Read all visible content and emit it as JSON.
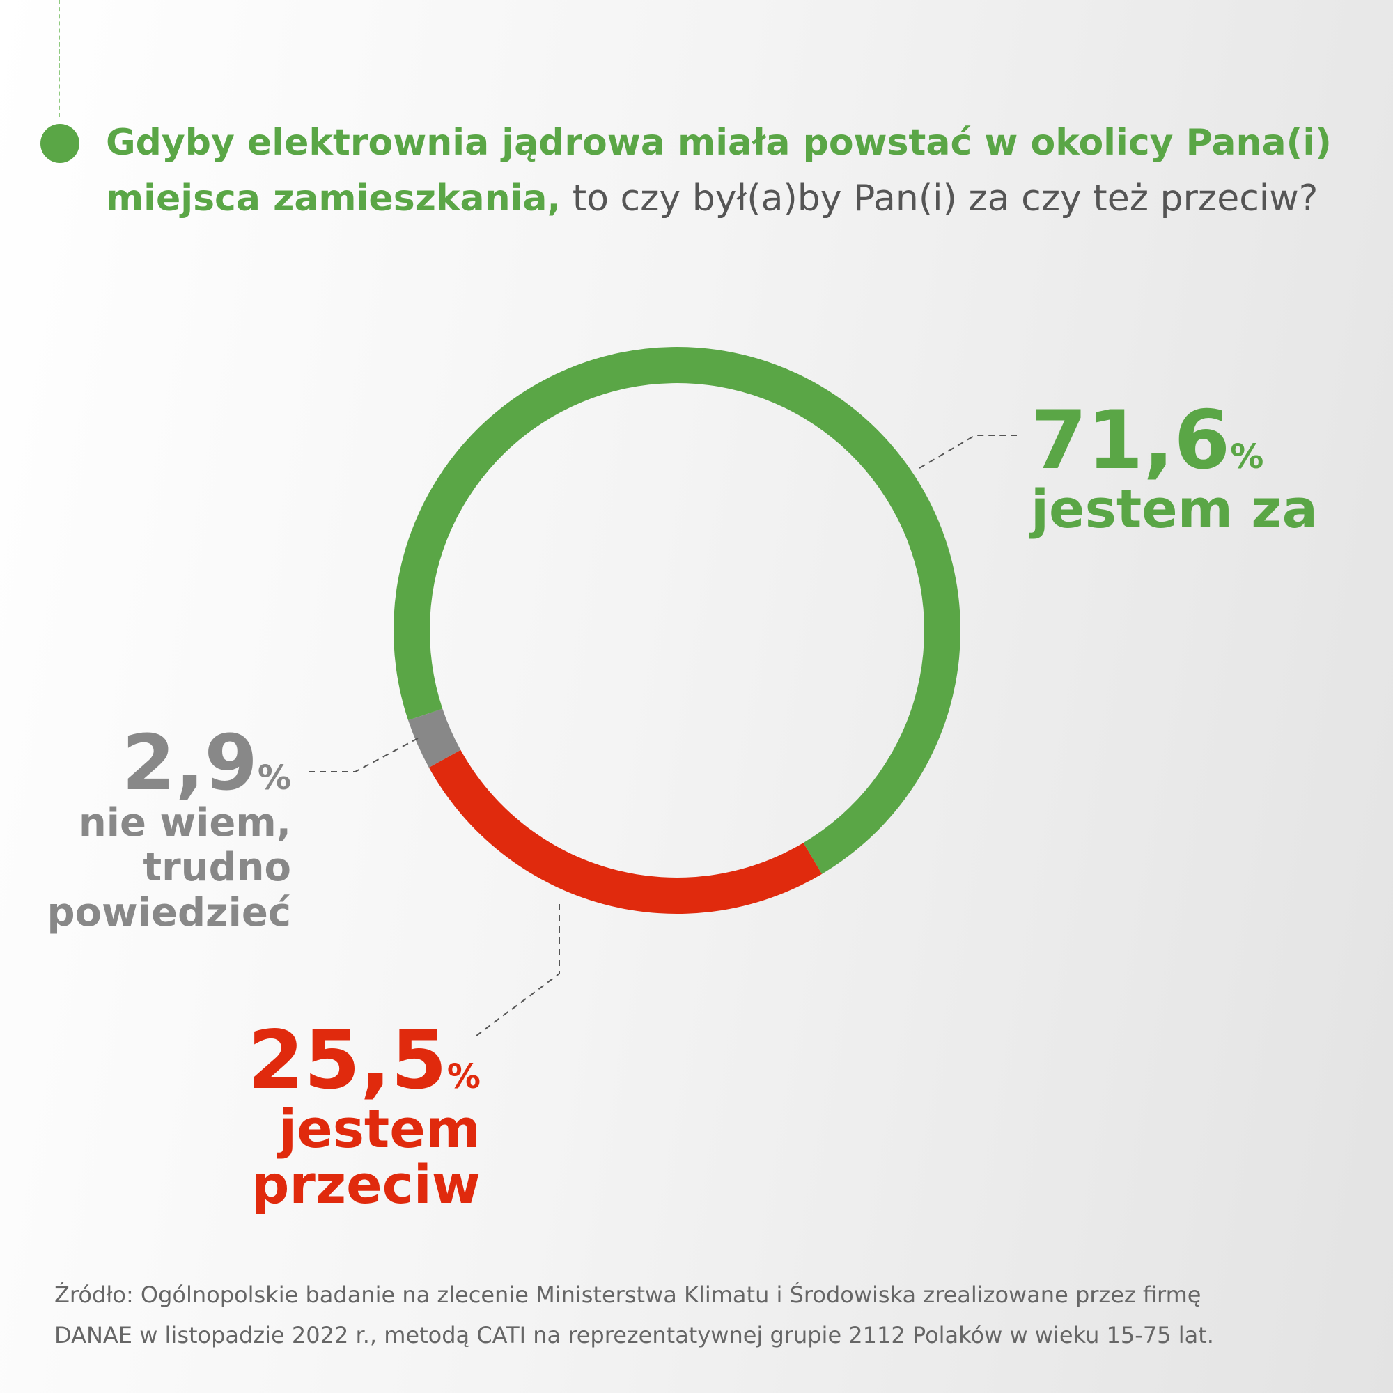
{
  "title": {
    "highlight_line1": "Gdyby elektrownia jądrowa miała powstać w okolicy Pana(i)",
    "highlight_line2": "miejsca zamieszkania,",
    "rest": " to czy był(a)by Pan(i) za czy też przeciw?"
  },
  "chart_data": {
    "type": "pie",
    "style": "donut",
    "series": [
      {
        "name": "jestem za",
        "value": 71.6,
        "value_label": "71,6",
        "color": "#5aa646"
      },
      {
        "name": "jestem przeciw",
        "value": 25.5,
        "value_label": "25,5",
        "color": "#e02a0d"
      },
      {
        "name": "nie wiem, trudno powiedzieć",
        "value": 2.9,
        "value_label": "2,9",
        "color": "#888888"
      }
    ],
    "percent_sign": "%"
  },
  "labels": {
    "za": {
      "value": "71,6",
      "pct": "%",
      "line1": "jestem za"
    },
    "nie_wiem": {
      "value": "2,9",
      "pct": "%",
      "line1": "nie wiem,",
      "line2": "trudno",
      "line3": "powiedzieć"
    },
    "przeciw": {
      "value": "25,5",
      "pct": "%",
      "line1": "jestem",
      "line2": "przeciw"
    }
  },
  "source": {
    "line1": "Źródło: Ogólnopolskie badanie na zlecenie Ministerstwa Klimatu i Środowiska zrealizowane przez firmę",
    "line2": "DANAE w listopadzie 2022 r., metodą CATI na reprezentatywnej grupie 2112 Polaków w wieku 15-75 lat."
  }
}
